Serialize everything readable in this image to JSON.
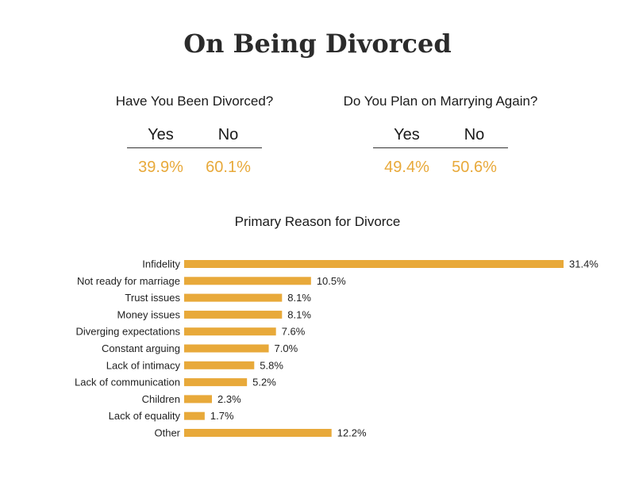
{
  "title": "On Being Divorced",
  "stats": [
    {
      "question": "Have You Been Divorced?",
      "headers": [
        "Yes",
        "No"
      ],
      "values": [
        "39.9%",
        "60.1%"
      ]
    },
    {
      "question": "Do You Plan on Marrying Again?",
      "headers": [
        "Yes",
        "No"
      ],
      "values": [
        "49.4%",
        "50.6%"
      ]
    }
  ],
  "colors": {
    "accent": "#e8a93a",
    "text": "#222222"
  },
  "chart_data": {
    "type": "bar",
    "orientation": "horizontal",
    "title": "Primary Reason for Divorce",
    "categories": [
      "Infidelity",
      "Not ready for marriage",
      "Trust issues",
      "Money issues",
      "Diverging expectations",
      "Constant arguing",
      "Lack of intimacy",
      "Lack of communication",
      "Children",
      "Lack of equality",
      "Other"
    ],
    "values": [
      31.4,
      10.5,
      8.1,
      8.1,
      7.6,
      7.0,
      5.8,
      5.2,
      2.3,
      1.7,
      12.2
    ],
    "labels": [
      "31.4%",
      "10.5%",
      "8.1%",
      "8.1%",
      "7.6%",
      "7.0%",
      "5.8%",
      "5.2%",
      "2.3%",
      "1.7%",
      "12.2%"
    ],
    "xlim": [
      0,
      31.4
    ],
    "grid": false,
    "legend": "none"
  }
}
